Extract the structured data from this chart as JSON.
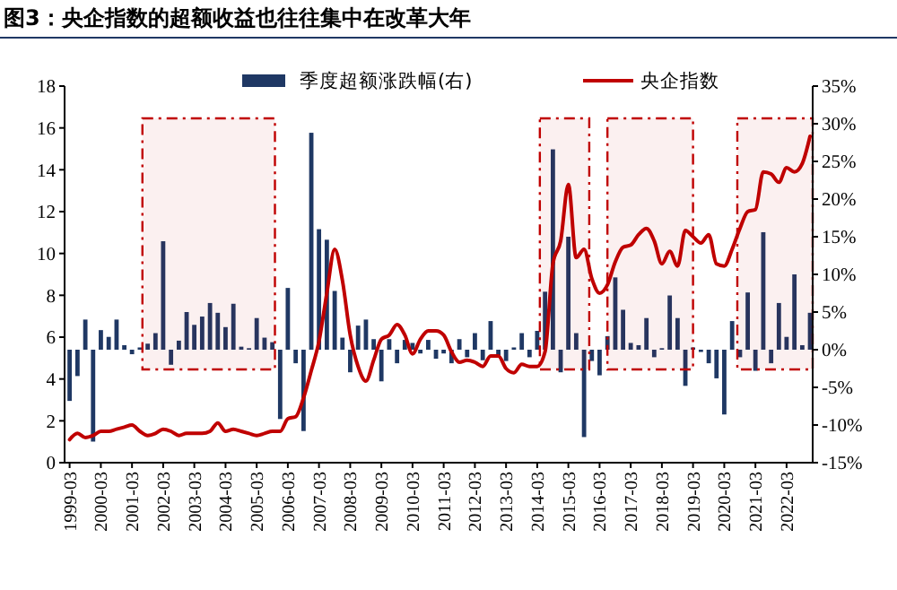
{
  "chart_data": {
    "type": "bar",
    "title": "图3：央企指数的超额收益也往往集中在改革大年",
    "x": [
      "1999-03",
      "1999-06",
      "1999-09",
      "1999-12",
      "2000-03",
      "2000-06",
      "2000-09",
      "2000-12",
      "2001-03",
      "2001-06",
      "2001-09",
      "2001-12",
      "2002-03",
      "2002-06",
      "2002-09",
      "2002-12",
      "2003-03",
      "2003-06",
      "2003-09",
      "2003-12",
      "2004-03",
      "2004-06",
      "2004-09",
      "2004-12",
      "2005-03",
      "2005-06",
      "2005-09",
      "2005-12",
      "2006-03",
      "2006-06",
      "2006-09",
      "2006-12",
      "2007-03",
      "2007-06",
      "2007-09",
      "2007-12",
      "2008-03",
      "2008-06",
      "2008-09",
      "2008-12",
      "2009-03",
      "2009-06",
      "2009-09",
      "2009-12",
      "2010-03",
      "2010-06",
      "2010-09",
      "2010-12",
      "2011-03",
      "2011-06",
      "2011-09",
      "2011-12",
      "2012-03",
      "2012-06",
      "2012-09",
      "2012-12",
      "2013-03",
      "2013-06",
      "2013-09",
      "2013-12",
      "2014-03",
      "2014-06",
      "2014-09",
      "2014-12",
      "2015-03",
      "2015-06",
      "2015-09",
      "2015-12",
      "2016-03",
      "2016-06",
      "2016-09",
      "2016-12",
      "2017-03",
      "2017-06",
      "2017-09",
      "2017-12",
      "2018-03",
      "2018-06",
      "2018-09",
      "2018-12",
      "2019-03",
      "2019-06",
      "2019-09",
      "2019-12",
      "2020-03",
      "2020-06",
      "2020-09",
      "2020-12",
      "2021-03",
      "2021-06",
      "2021-09",
      "2021-12",
      "2022-03",
      "2022-06",
      "2022-09",
      "2022-12"
    ],
    "series": [
      {
        "name": "季度超额涨跌幅(右)",
        "axis": "y2",
        "color": "#1f3864",
        "values": [
          -6.8,
          -3.5,
          4.0,
          -12.2,
          2.6,
          1.7,
          4.0,
          0.6,
          -0.6,
          0.3,
          0.8,
          2.2,
          14.4,
          -2.0,
          1.2,
          5.0,
          3.3,
          4.4,
          6.2,
          4.9,
          3.0,
          6.1,
          0.4,
          0.2,
          4.2,
          1.6,
          1.0,
          -9.2,
          8.2,
          -1.8,
          -10.8,
          28.8,
          16.0,
          14.6,
          7.8,
          1.6,
          -3.0,
          3.2,
          4.0,
          1.4,
          -4.2,
          1.4,
          -1.8,
          1.3,
          0.9,
          -0.5,
          1.3,
          -1.2,
          -0.5,
          -1.8,
          1.4,
          -1.0,
          2.2,
          -1.4,
          3.8,
          -1.0,
          -1.5,
          0.3,
          2.2,
          -1.0,
          2.5,
          7.7,
          26.6,
          -3.0,
          15.0,
          2.2,
          -11.6,
          -1.5,
          -3.4,
          1.8,
          9.6,
          5.3,
          0.9,
          0.6,
          4.2,
          -1.0,
          0.2,
          7.2,
          4.2,
          -4.8,
          0.3,
          -0.3,
          -1.8,
          -3.8,
          -8.6,
          3.8,
          -1.0,
          7.6,
          -2.8,
          15.6,
          -1.8,
          6.2,
          1.7,
          10.0,
          0.6,
          4.9
        ]
      },
      {
        "name": "央企指数",
        "type": "line",
        "axis": "y",
        "color": "#c00000",
        "values": [
          1.1,
          1.4,
          1.2,
          1.3,
          1.5,
          1.5,
          1.6,
          1.7,
          1.8,
          1.5,
          1.3,
          1.4,
          1.6,
          1.5,
          1.3,
          1.4,
          1.4,
          1.4,
          1.5,
          1.9,
          1.5,
          1.6,
          1.5,
          1.4,
          1.3,
          1.4,
          1.5,
          1.5,
          2.1,
          2.2,
          3.1,
          4.4,
          5.8,
          8.1,
          10.2,
          8.7,
          6.1,
          4.6,
          3.9,
          4.9,
          5.9,
          6.1,
          6.6,
          6.1,
          5.2,
          5.9,
          6.3,
          6.3,
          6.1,
          5.3,
          4.8,
          4.9,
          4.8,
          4.6,
          5.1,
          5.1,
          4.5,
          4.3,
          4.7,
          4.6,
          4.6,
          5.3,
          9.5,
          10.6,
          13.3,
          9.8,
          10.2,
          8.8,
          8.1,
          8.5,
          9.6,
          10.3,
          10.4,
          10.9,
          11.2,
          10.6,
          9.5,
          10.1,
          9.4,
          11.1,
          10.8,
          10.5,
          10.9,
          9.5,
          9.4,
          10.2,
          11.2,
          12.0,
          12.1,
          13.9,
          13.8,
          13.4,
          14.1,
          13.9,
          14.3,
          15.6
        ]
      }
    ],
    "xlim": [
      "1999-01",
      "2023-01"
    ],
    "xticks": [
      "1999-03",
      "2000-03",
      "2001-03",
      "2002-03",
      "2003-03",
      "2004-03",
      "2005-03",
      "2006-03",
      "2007-03",
      "2008-03",
      "2009-03",
      "2010-03",
      "2011-03",
      "2012-03",
      "2013-03",
      "2014-03",
      "2015-03",
      "2016-03",
      "2017-03",
      "2018-03",
      "2019-03",
      "2020-03",
      "2021-03",
      "2022-03"
    ],
    "ylim": [
      0,
      18
    ],
    "yticks": [
      0,
      2,
      4,
      6,
      8,
      10,
      12,
      14,
      16,
      18
    ],
    "y2lim": [
      -15,
      35
    ],
    "y2ticks": [
      {
        "value": -15,
        "label": "-15%"
      },
      {
        "value": -10,
        "label": "-10%"
      },
      {
        "value": -5,
        "label": "-5%"
      },
      {
        "value": 0,
        "label": "0%"
      },
      {
        "value": 5,
        "label": "5%"
      },
      {
        "value": 10,
        "label": "10%"
      },
      {
        "value": 15,
        "label": "15%"
      },
      {
        "value": 20,
        "label": "20%"
      },
      {
        "value": 25,
        "label": "25%"
      },
      {
        "value": 30,
        "label": "30%"
      },
      {
        "value": 35,
        "label": "35%"
      }
    ],
    "bands": [
      {
        "axis": "x",
        "from": "2001-07",
        "to": "2005-10",
        "color": "#c00000"
      },
      {
        "axis": "x",
        "from": "2014-04",
        "to": "2015-11",
        "color": "#c00000"
      },
      {
        "axis": "x",
        "from": "2016-06",
        "to": "2019-03",
        "color": "#c00000"
      },
      {
        "axis": "x",
        "from": "2020-08",
        "to": "2023-01",
        "color": "#c00000"
      }
    ],
    "legend": "top",
    "grid": false
  }
}
